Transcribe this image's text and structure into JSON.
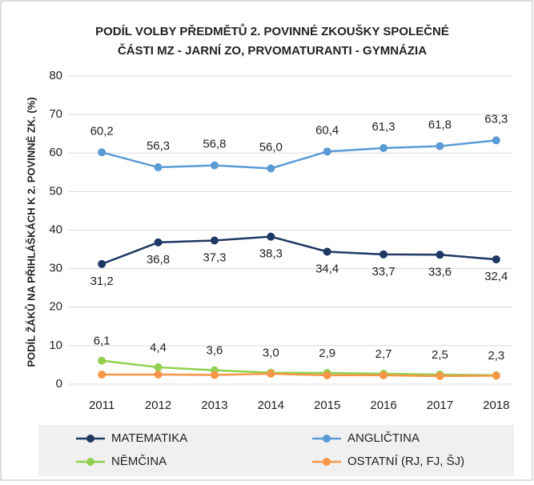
{
  "chart_data": {
    "type": "line",
    "title": [
      "PODÍL VOLBY PŘEDMĚTŮ 2. POVINNÉ ZKOUŠKY SPOLEČNÉ",
      "ČÁSTI MZ - JARNÍ ZO, PRVOMATURANTI - GYMNÁZIA"
    ],
    "y_label": "PODÍL ŽÁKŮ NA PŘIHLÁŠKÁCH K 2. POVINNÉ ZK. (%)",
    "categories": [
      "2011",
      "2012",
      "2013",
      "2014",
      "2015",
      "2016",
      "2017",
      "2018"
    ],
    "series": [
      {
        "name": "MATEMATIKA",
        "color": "#1f3864",
        "values": [
          31.2,
          36.8,
          37.3,
          38.3,
          34.4,
          33.7,
          33.6,
          32.4
        ],
        "value_labels": [
          "31,2",
          "36,8",
          "37,3",
          "38,3",
          "34,4",
          "33,7",
          "33,6",
          "32,4"
        ]
      },
      {
        "name": "ANGLIČTINA",
        "color": "#5b9bd5",
        "values": [
          60.2,
          56.3,
          56.8,
          56.0,
          60.4,
          61.3,
          61.8,
          63.3
        ],
        "value_labels": [
          "60,2",
          "56,3",
          "56,8",
          "56,0",
          "60,4",
          "61,3",
          "61,8",
          "63,3"
        ]
      },
      {
        "name": "NĚMČINA",
        "color": "#92d050",
        "values": [
          6.1,
          4.4,
          3.6,
          3.0,
          2.9,
          2.7,
          2.5,
          2.3
        ],
        "value_labels": [
          "6,1",
          "4,4",
          "3,6",
          "3,0",
          "2,9",
          "2,7",
          "2,5",
          "2,3"
        ]
      },
      {
        "name": "OSTATNÍ (RJ, FJ, ŠJ)",
        "color": "#f79646",
        "values": [
          2.5,
          2.5,
          2.4,
          2.7,
          2.3,
          2.3,
          2.1,
          2.2
        ]
      }
    ],
    "ylim": [
      0,
      80
    ],
    "yticks": [
      0,
      10,
      20,
      30,
      40,
      50,
      60,
      70,
      80
    ],
    "grid": true
  }
}
